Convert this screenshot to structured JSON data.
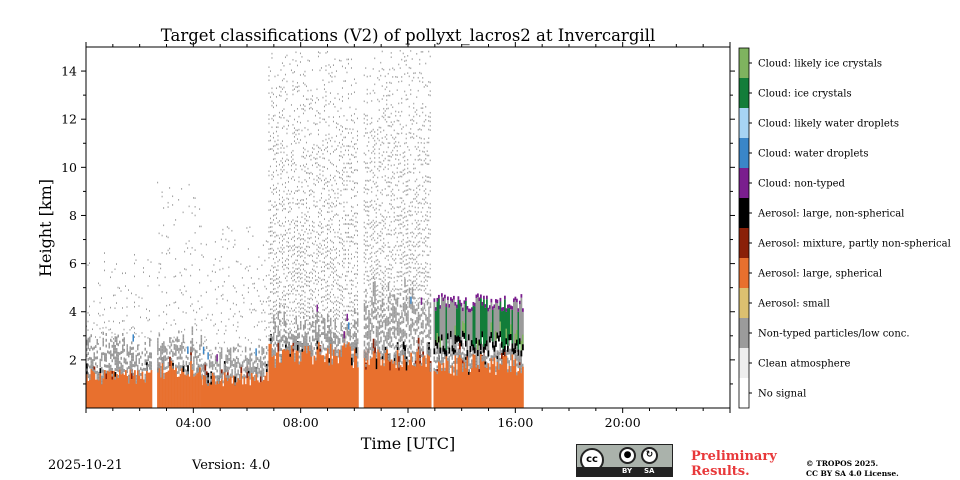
{
  "chart_data": {
    "type": "heatmap",
    "title": "Target classifications (V2) of pollyxt_lacros2 at Invercargill",
    "xlabel": "Time [UTC]",
    "ylabel": "Height [km]",
    "xlim_hours": [
      0,
      24
    ],
    "ylim_km": [
      0,
      15
    ],
    "x_ticks": [
      {
        "hour": 4,
        "label": "04:00"
      },
      {
        "hour": 8,
        "label": "08:00"
      },
      {
        "hour": 12,
        "label": "12:00"
      },
      {
        "hour": 16,
        "label": "16:00"
      },
      {
        "hour": 20,
        "label": "20:00"
      }
    ],
    "y_ticks": [
      {
        "km": 2,
        "label": "2"
      },
      {
        "km": 4,
        "label": "4"
      },
      {
        "km": 6,
        "label": "6"
      },
      {
        "km": 8,
        "label": "8"
      },
      {
        "km": 10,
        "label": "10"
      },
      {
        "km": 12,
        "label": "12"
      },
      {
        "km": 14,
        "label": "14"
      }
    ],
    "classes": [
      {
        "label": "Cloud: likely ice crystals",
        "color": "#7fb35f"
      },
      {
        "label": "Cloud: ice crystals",
        "color": "#137d3a"
      },
      {
        "label": "Cloud: likely water droplets",
        "color": "#a7d4f4"
      },
      {
        "label": "Cloud: water droplets",
        "color": "#3a86c8"
      },
      {
        "label": "Cloud: non-typed",
        "color": "#7a1e8e"
      },
      {
        "label": "Aerosol: large, non-spherical",
        "color": "#000000"
      },
      {
        "label": "Aerosol: mixture, partly non-spherical",
        "color": "#8a2008"
      },
      {
        "label": "Aerosol: large, spherical",
        "color": "#e8702e"
      },
      {
        "label": "Aerosol: small",
        "color": "#dcc070"
      },
      {
        "label": "Non-typed particles/low conc.",
        "color": "#9b9b9b"
      },
      {
        "label": "Clean atmosphere",
        "color": "#eeeeee"
      },
      {
        "label": "No signal",
        "color": "#ffffff"
      }
    ],
    "segments": [
      {
        "start_h": 0.0,
        "end_h": 2.45,
        "aerosol_top_km": 1.3,
        "grey_top_km": 2.6,
        "scatter_top_km": 6.5
      },
      {
        "start_h": 2.65,
        "end_h": 4.3,
        "aerosol_top_km": 1.6,
        "grey_top_km": 2.8,
        "scatter_top_km": 9.5
      },
      {
        "start_h": 4.3,
        "end_h": 6.8,
        "aerosol_top_km": 1.2,
        "grey_top_km": 2.2,
        "scatter_top_km": 7.5
      },
      {
        "start_h": 6.8,
        "end_h": 10.15,
        "aerosol_top_km": 2.2,
        "grey_top_km": 3.6,
        "scatter_top_km": 14.8
      },
      {
        "start_h": 10.35,
        "end_h": 12.85,
        "aerosol_top_km": 2.0,
        "grey_top_km": 4.5,
        "scatter_top_km": 14.8
      },
      {
        "start_h": 12.95,
        "end_h": 16.25,
        "aerosol_top_km": 1.8,
        "grey_top_km": 2.8,
        "cloud_base_km": 2.8,
        "cloud_top_km": 4.4
      }
    ]
  },
  "footer": {
    "date": "2025-10-21",
    "version": "Version: 4.0",
    "preliminary_line1": "Preliminary",
    "preliminary_line2": "Results.",
    "license_line1": "© TROPOS 2025.",
    "license_line2": "CC BY SA 4.0 License.",
    "cc_logo": {
      "main": "cc",
      "by": "BY",
      "sa": "SA"
    }
  }
}
